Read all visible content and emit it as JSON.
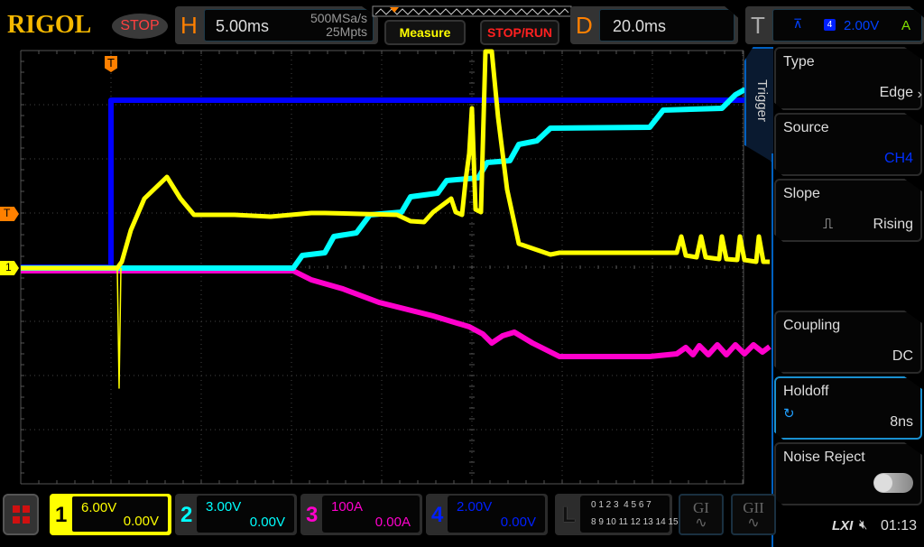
{
  "header": {
    "logo": "RIGOL",
    "run_state": "STOP",
    "horizontal": {
      "letter": "H",
      "timebase": "5.00ms",
      "sample_rate": "500MSa/s",
      "memory_depth": "25Mpts"
    },
    "measure_label": "Measure",
    "stop_run_label": "STOP/RUN",
    "delay": {
      "letter": "D",
      "value": "20.0ms"
    },
    "trigger": {
      "letter": "T",
      "source_badge": "4",
      "level": "2.00V",
      "mode": "A"
    }
  },
  "markers": {
    "trigger_pos": "T",
    "trigger_level": "T",
    "ch1": "1"
  },
  "trigger_menu": {
    "tab": "Trigger",
    "items": [
      {
        "label": "Type",
        "value": "Edge"
      },
      {
        "label": "Source",
        "value": "CH4"
      },
      {
        "label": "Slope",
        "value": "Rising"
      },
      {
        "label": "Coupling",
        "value": "DC"
      },
      {
        "label": "Holdoff",
        "value": "8ns"
      },
      {
        "label": "Noise Reject",
        "value": "",
        "toggle": false
      }
    ]
  },
  "channels": [
    {
      "num": "1",
      "scale": "6.00V",
      "offset": "0.00V",
      "color": "#ffff00"
    },
    {
      "num": "2",
      "scale": "3.00V",
      "offset": "0.00V",
      "color": "#00ffff"
    },
    {
      "num": "3",
      "scale": "100A",
      "offset": "0.00A",
      "color": "#ff00cc"
    },
    {
      "num": "4",
      "scale": "2.00V",
      "offset": "0.00V",
      "color": "#0000ff"
    }
  ],
  "logic": {
    "letter": "L",
    "row1": "0 1 2 3  4 5 6 7",
    "row2": "8 9 10 11 12 13 14 15"
  },
  "generators": [
    "GI",
    "GII"
  ],
  "status": {
    "lxi": "LXI",
    "time": "01:13"
  }
}
